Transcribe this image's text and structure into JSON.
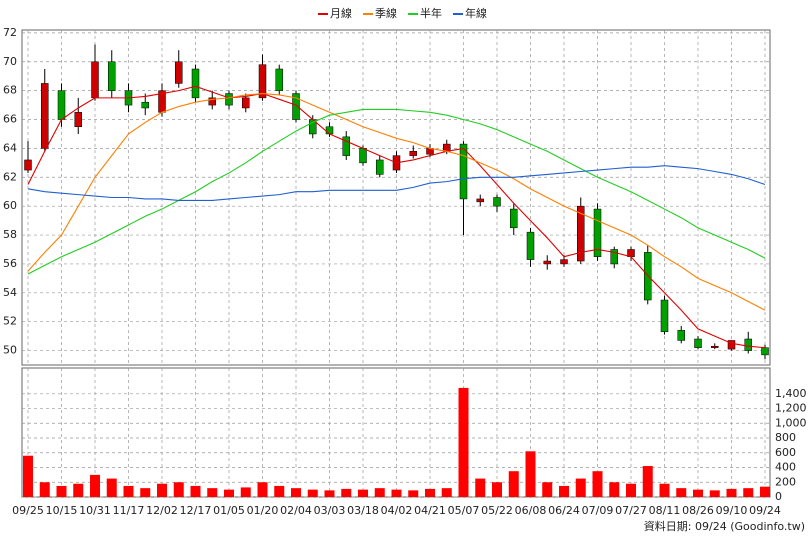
{
  "chart_data": [
    {
      "type": "candlestick",
      "categories": [
        "09/25",
        null,
        "10/15",
        null,
        "10/31",
        null,
        "11/17",
        null,
        "12/02",
        null,
        "12/17",
        null,
        "01/05",
        null,
        "01/20",
        null,
        "02/04",
        null,
        "03/03",
        null,
        "03/18",
        null,
        "04/02",
        null,
        "04/21",
        null,
        "05/07",
        null,
        "05/22",
        null,
        "06/08",
        null,
        "06/24",
        null,
        "07/09",
        null,
        "07/27",
        null,
        "08/11",
        null,
        "08/26",
        null,
        "09/10",
        null,
        "09/24"
      ],
      "open": [
        62.5,
        64,
        68,
        65.5,
        67.5,
        70,
        68,
        67.2,
        66.5,
        68.5,
        69.5,
        67,
        67.8,
        66.8,
        67.5,
        69.5,
        67.8,
        66,
        65.5,
        64.8,
        64,
        63.2,
        62.5,
        63.5,
        63.6,
        63.8,
        64.3,
        60.3,
        60.6,
        59.8,
        58.2,
        56,
        56,
        56.2,
        59.8,
        57,
        56.5,
        56.8,
        53.5,
        51.4,
        50.8,
        50.2,
        50.1,
        50.8,
        50.2
      ],
      "high": [
        64.5,
        69.5,
        68.5,
        67.5,
        71.2,
        70.8,
        68.5,
        67.8,
        68.5,
        70.8,
        69.8,
        68,
        68,
        67.8,
        70.5,
        69.8,
        68,
        66.3,
        65.8,
        65.2,
        64.2,
        63.5,
        63.8,
        64.2,
        64.3,
        64.6,
        64.5,
        60.8,
        60.8,
        60.2,
        58.5,
        56.6,
        56.6,
        60.6,
        60.2,
        57.2,
        57.2,
        57.3,
        53.8,
        51.7,
        51,
        50.5,
        50.6,
        51.3,
        50.4
      ],
      "low": [
        62.3,
        63.8,
        65.5,
        65,
        67.3,
        67.5,
        66.5,
        66.3,
        66.2,
        68.2,
        67.2,
        66.7,
        66.7,
        66.5,
        67.3,
        67.7,
        65.8,
        64.7,
        64.8,
        63.2,
        62.8,
        62,
        62.3,
        63.3,
        63.4,
        63.6,
        58,
        60,
        59.6,
        58,
        55.8,
        55.6,
        55.8,
        56,
        56.2,
        55.7,
        56.2,
        53.2,
        51.1,
        50.5,
        50.1,
        50.1,
        50,
        49.8,
        49.4
      ],
      "close": [
        63.2,
        68.5,
        66,
        66.5,
        70,
        68,
        67,
        66.8,
        68,
        70,
        67.5,
        67.5,
        67,
        67.5,
        69.8,
        68,
        66,
        65,
        65,
        63.5,
        63,
        62.2,
        63.5,
        63.8,
        64,
        64.3,
        60.5,
        60.5,
        60,
        58.5,
        56.3,
        56.2,
        56.3,
        60,
        56.5,
        56,
        57,
        53.5,
        51.3,
        50.7,
        50.2,
        50.3,
        50.7,
        50,
        49.7
      ],
      "up_color": "#d00000",
      "down_color": "#00a000",
      "series": [
        {
          "name": "月線",
          "color": "#e00000",
          "values": [
            61.5,
            63.8,
            66,
            66.8,
            67.5,
            67.5,
            67.5,
            67.6,
            67.8,
            68,
            68.3,
            67.9,
            67.5,
            67.6,
            67.8,
            67.4,
            67,
            66,
            65,
            64.5,
            64,
            63.5,
            63,
            63.2,
            63.5,
            63.8,
            64,
            62.8,
            61.5,
            60.2,
            59,
            57.8,
            56.5,
            56.8,
            57,
            56.8,
            56.5,
            55.2,
            54,
            52.8,
            51.5,
            51,
            50.5,
            50.3,
            50.2
          ]
        },
        {
          "name": "季線",
          "color": "#ff7f00",
          "values": [
            55.5,
            56.8,
            58,
            60,
            62,
            63.5,
            65,
            65.8,
            66.5,
            66.9,
            67.2,
            67.4,
            67.5,
            67.7,
            67.8,
            67.7,
            67.5,
            67,
            66.5,
            66,
            65.5,
            65.1,
            64.7,
            64.4,
            64,
            63.8,
            63.5,
            63,
            62.5,
            61.9,
            61.2,
            60.6,
            60,
            59.5,
            59,
            58.5,
            58,
            57.3,
            56.5,
            55.8,
            55,
            54.5,
            54,
            53.4,
            52.8
          ]
        },
        {
          "name": "半年",
          "color": "#22cc22",
          "values": [
            55.3,
            55.9,
            56.5,
            57,
            57.5,
            58.1,
            58.7,
            59.3,
            59.8,
            60.4,
            61,
            61.7,
            62.3,
            63,
            63.8,
            64.5,
            65.2,
            65.8,
            66.3,
            66.5,
            66.7,
            66.7,
            66.7,
            66.6,
            66.5,
            66.3,
            66,
            65.7,
            65.3,
            64.8,
            64.3,
            63.8,
            63.2,
            62.6,
            62,
            61.5,
            61,
            60.4,
            59.8,
            59.2,
            58.5,
            58,
            57.5,
            57,
            56.4
          ]
        },
        {
          "name": "年線",
          "color": "#1f5fd0",
          "values": [
            61.2,
            61,
            60.9,
            60.8,
            60.7,
            60.6,
            60.6,
            60.5,
            60.5,
            60.4,
            60.4,
            60.4,
            60.5,
            60.6,
            60.7,
            60.8,
            61,
            61,
            61.1,
            61.1,
            61.1,
            61.1,
            61.1,
            61.3,
            61.6,
            61.7,
            61.9,
            62,
            62,
            62,
            62.1,
            62.2,
            62.3,
            62.4,
            62.5,
            62.6,
            62.7,
            62.7,
            62.8,
            62.7,
            62.6,
            62.4,
            62.2,
            61.9,
            61.5
          ]
        }
      ],
      "ylim": [
        49,
        72.2
      ],
      "yticks": [
        50,
        52,
        54,
        56,
        58,
        60,
        62,
        64,
        66,
        68,
        70,
        72
      ],
      "grid": true,
      "footnote": "資料日期: 09/24 (Goodinfo.tw)"
    },
    {
      "type": "bar",
      "color": "#ff0000",
      "values": [
        560,
        200,
        150,
        180,
        300,
        250,
        150,
        120,
        180,
        200,
        150,
        120,
        100,
        130,
        200,
        150,
        120,
        100,
        90,
        110,
        100,
        120,
        100,
        90,
        110,
        120,
        1480,
        250,
        200,
        350,
        620,
        200,
        150,
        250,
        350,
        200,
        180,
        420,
        180,
        120,
        100,
        90,
        110,
        120,
        140
      ],
      "ylim": [
        0,
        1750
      ],
      "yticks": [
        0,
        200,
        400,
        600,
        800,
        {
          "value": 1000,
          "label": "1,000"
        },
        {
          "value": 1200,
          "label": "1,200"
        },
        {
          "value": 1400,
          "label": "1,400"
        }
      ],
      "grid": true
    }
  ]
}
